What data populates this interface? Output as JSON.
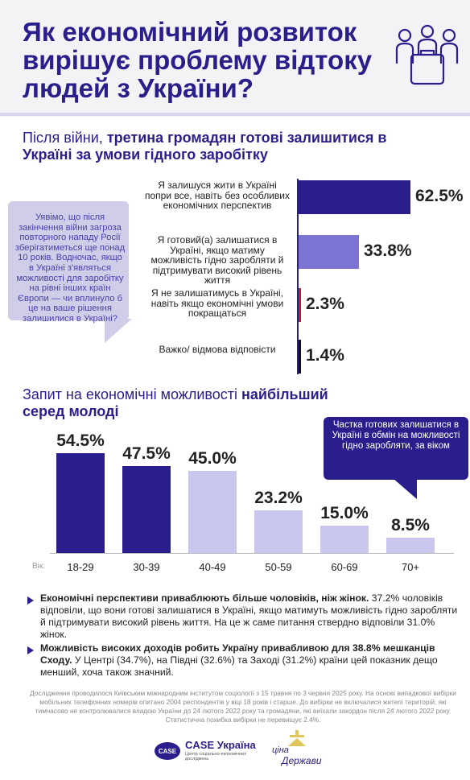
{
  "title": "Як економічний розвиток вирішує проблему відтоку людей з України?",
  "section1": {
    "heading_normal": "Після війни, ",
    "heading_strong": "третина громадян готові залишитися в Україні за умови гідного заробітку"
  },
  "question": "Уявімо, що після закінчення війни загроза повторного нападу Росії зберігатиметься ще понад 10 років. Водночас, якщо в Україні з'являться можливості для заробітку на рівні інших країн Європи — чи вплинуло б це на ваше рішення залишилися в Україні?",
  "section2": {
    "heading_normal": "Запит на економічні можливості ",
    "heading_strong": "найбільший серед молоді"
  },
  "callout": "Частка готових залишатися в Україні в обмін на можливості гідно заробляти, за віком",
  "notes": [
    {
      "bold": "Економічні перспективи приваблюють більше чоловіків, ніж жінок.",
      "text": " 37.2% чоловіків відповіли, що вони готові залишатися в Україні, якщо матимуть можливість гідно заробляти й підтримувати високий рівень життя. На це ж саме питання ствердно відповіли 31.0% жінок."
    },
    {
      "bold": "Можливість високих доходів робить Україну привабливою для 38.8% мешканців Сходу.",
      "text": " У Центрі (34.7%), на Півдні (32.6%) та Заході (31.2%) країни цей показник дещо менший, хоча також значний."
    }
  ],
  "methodology": "Дослідження проводилося Київським міжнародним інститутом соціології з 15 травня по 3 червня 2025 року. На основі випадкової вибірки мобільних телефонних номерів опитано 2004 респондентів у віці 18 років і старше. До вибірки не включалися жителі територій, які тимчасово не контролювалися владою України до 24 лютого 2022 року та громадяни, які виїхали закордон після 24 лютого 2022 року. Статистична похибка вибірки не перевищує 2.4%.",
  "logos": {
    "case_name": "CASE Україна",
    "case_sub": "Центр соціально-економічних досліджень",
    "case_badge": "CASE",
    "ciny_line1": "ціна",
    "ciny_line2": "Держави"
  },
  "colors": {
    "dark_blue": "#2a1e8c",
    "mid_blue": "#7b74d2",
    "light_blue": "#c9c7ee",
    "red": "#c0202a",
    "black": "#111111"
  },
  "chart_data": [
    {
      "type": "bar",
      "orientation": "horizontal",
      "categories": [
        "Я залишуся жити в Україні попри все, навіть без особливих економічних перспектив",
        "Я готовий(а) залишатися в Україні, якщо матиму можливість гідно заробляти й підтримувати високий рівень життя",
        "Я не залишатимусь в Україні, навіть якщо економічні умови покращаться",
        "Важко/ відмова відповісти"
      ],
      "values": [
        62.5,
        33.8,
        2.3,
        1.4
      ],
      "value_labels": [
        "62.5%",
        "33.8%",
        "2.3%",
        "1.4%"
      ],
      "bar_colors": [
        "#2a1e8c",
        "#7b74d2",
        "#c0202a",
        "#111111"
      ],
      "xlim": [
        0,
        62.5
      ]
    },
    {
      "type": "bar",
      "orientation": "vertical",
      "xlabel": "Вік:",
      "categories": [
        "18-29",
        "30-39",
        "40-49",
        "50-59",
        "60-69",
        "70+"
      ],
      "values": [
        54.5,
        47.5,
        45.0,
        23.2,
        15.0,
        8.5
      ],
      "value_labels": [
        "54.5%",
        "47.5%",
        "45.0%",
        "23.2%",
        "15.0%",
        "8.5%"
      ],
      "bar_colors": [
        "#2a1e8c",
        "#2a1e8c",
        "#c9c7ee",
        "#c9c7ee",
        "#c9c7ee",
        "#c9c7ee"
      ],
      "ylim": [
        0,
        54.5
      ]
    }
  ]
}
